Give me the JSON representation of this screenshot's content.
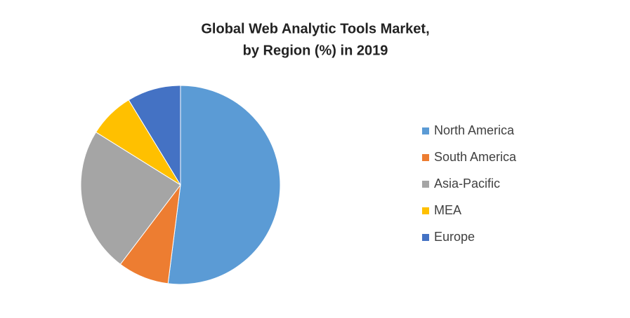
{
  "chart_data": {
    "type": "pie",
    "title": [
      "Global Web Analytic Tools Market,",
      "by Region (%) in 2019"
    ],
    "categories": [
      "North America",
      "South America",
      "Asia-Pacific",
      "MEA",
      "Europe"
    ],
    "values": [
      52,
      8.3,
      23.6,
      7.4,
      8.7
    ],
    "colors": [
      "#5b9bd5",
      "#ed7d31",
      "#a5a5a5",
      "#ffc000",
      "#4472c4"
    ],
    "legend": "right"
  }
}
